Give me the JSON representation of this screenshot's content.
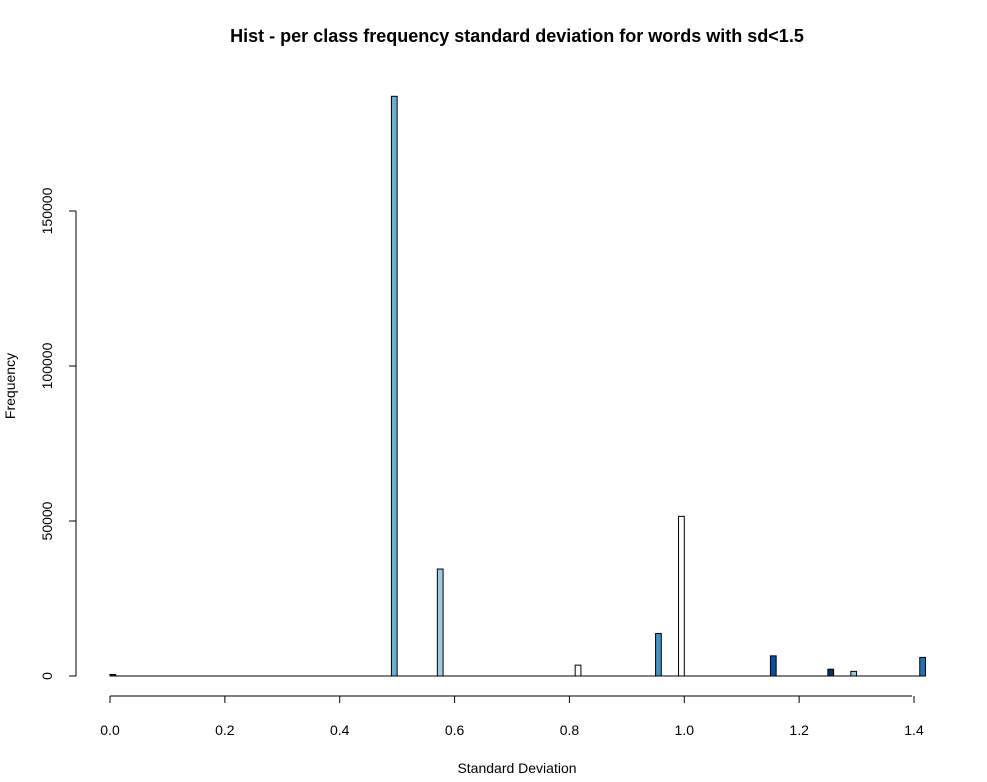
{
  "chart_data": {
    "type": "bar",
    "title": "Hist - per class frequency standard deviation for words with sd<1.5",
    "xlabel": "Standard Deviation",
    "ylabel": "Frequency",
    "xlim": [
      0.0,
      1.42
    ],
    "ylim": [
      0,
      188000
    ],
    "bin_width": 0.01,
    "x_ticks": [
      "0.0",
      "0.2",
      "0.4",
      "0.6",
      "0.8",
      "1.0",
      "1.2",
      "1.4"
    ],
    "y_ticks": [
      "0",
      "50000",
      "100000",
      "150000"
    ],
    "grid": false,
    "bars": [
      {
        "x0": 0.0,
        "x1": 0.01,
        "value": 500,
        "color": "#08306b"
      },
      {
        "x0": 0.49,
        "x1": 0.5,
        "value": 187000,
        "color": "#6baed6"
      },
      {
        "x0": 0.57,
        "x1": 0.58,
        "value": 34500,
        "color": "#9ecae1"
      },
      {
        "x0": 0.81,
        "x1": 0.82,
        "value": 3500,
        "color": "#ffffff"
      },
      {
        "x0": 0.95,
        "x1": 0.96,
        "value": 13700,
        "color": "#4292c6"
      },
      {
        "x0": 0.99,
        "x1": 1.0,
        "value": 51500,
        "color": "#ffffff"
      },
      {
        "x0": 1.15,
        "x1": 1.16,
        "value": 6500,
        "color": "#08519c"
      },
      {
        "x0": 1.25,
        "x1": 1.26,
        "value": 2200,
        "color": "#08306b"
      },
      {
        "x0": 1.29,
        "x1": 1.3,
        "value": 1500,
        "color": "#9ecae1"
      },
      {
        "x0": 1.41,
        "x1": 1.42,
        "value": 6000,
        "color": "#2171b5"
      }
    ]
  }
}
